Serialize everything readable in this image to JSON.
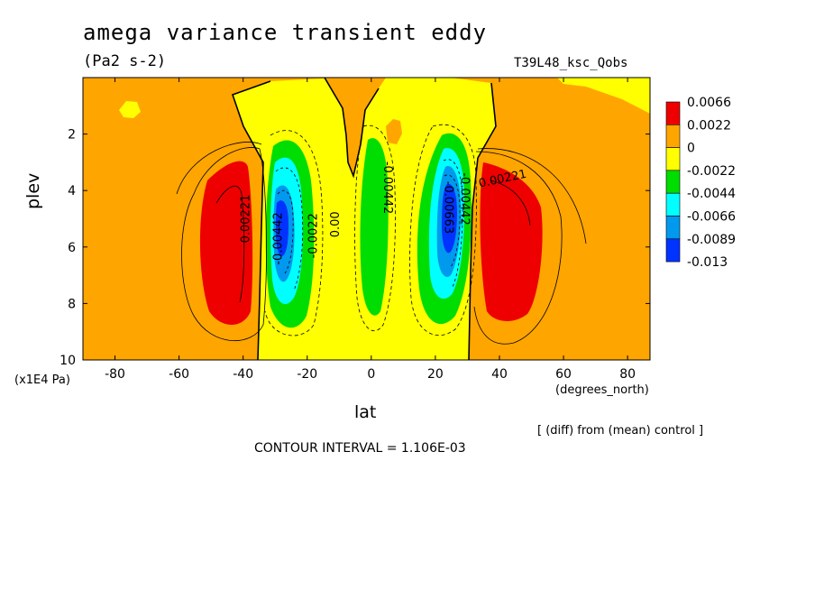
{
  "colors": {
    "c_pos_high": "#ee0000",
    "c_pos_mid": "#ffa500",
    "c_zero": "#ffff00",
    "c_neg1": "#00dd00",
    "c_neg2": "#00ffff",
    "c_neg3": "#0099ee",
    "c_neg4": "#0033ff"
  },
  "header": {
    "title": "amega variance transient eddy",
    "units": "(Pa2 s-2)",
    "run": "T39L48_ksc_Qobs"
  },
  "axes": {
    "xlabel": "lat",
    "ylabel": "plev",
    "x_unit_left": "(x1E4 Pa)",
    "x_unit_right": "(degrees_north)"
  },
  "footer": {
    "diff_note": "[ (diff) from (mean) control ]",
    "contour_interval": "CONTOUR INTERVAL = 1.106E-03"
  },
  "chart_data": {
    "type": "heatmap",
    "xlim": [
      -90,
      87
    ],
    "ylim": [
      0,
      10
    ],
    "y_inverted": true,
    "x_ticks": [
      -80,
      -60,
      -40,
      -20,
      0,
      20,
      40,
      60,
      80
    ],
    "x_tick_labels": [
      "-80",
      "-60",
      "-40",
      "-20",
      "0",
      "20",
      "40",
      "60",
      "80"
    ],
    "y_ticks": [
      2,
      4,
      6,
      8,
      10
    ],
    "y_tick_labels": [
      "2",
      "4",
      "6",
      "8",
      "10"
    ],
    "colorbar": {
      "labels": [
        "0.0066",
        "0.0022",
        "0",
        "-0.0022",
        "-0.0044",
        "-0.0066",
        "-0.0089",
        "-0.013"
      ],
      "colors": [
        "#ee0000",
        "#ffa500",
        "#ffff00",
        "#00dd00",
        "#00ffff",
        "#0099ee",
        "#0033ff"
      ]
    },
    "contour_labels": [
      {
        "text": "0.00221",
        "lat": 41,
        "plev": 3.6,
        "angle": -12
      },
      {
        "text": "0.00221",
        "lat": -39,
        "plev": 5.0,
        "angle": -90
      },
      {
        "text": "-0.00442",
        "lat": -29,
        "plev": 5.7,
        "angle": -90
      },
      {
        "text": "-0.0022",
        "lat": -18,
        "plev": 5.6,
        "angle": -90
      },
      {
        "text": "0.00",
        "lat": -11,
        "plev": 5.2,
        "angle": -90
      },
      {
        "text": "-0.00442",
        "lat": 5,
        "plev": 3.9,
        "angle": 90
      },
      {
        "text": "-0.00663",
        "lat": 24,
        "plev": 4.6,
        "angle": 90
      },
      {
        "text": "-0.00442",
        "lat": 29,
        "plev": 4.3,
        "angle": 90
      }
    ]
  }
}
